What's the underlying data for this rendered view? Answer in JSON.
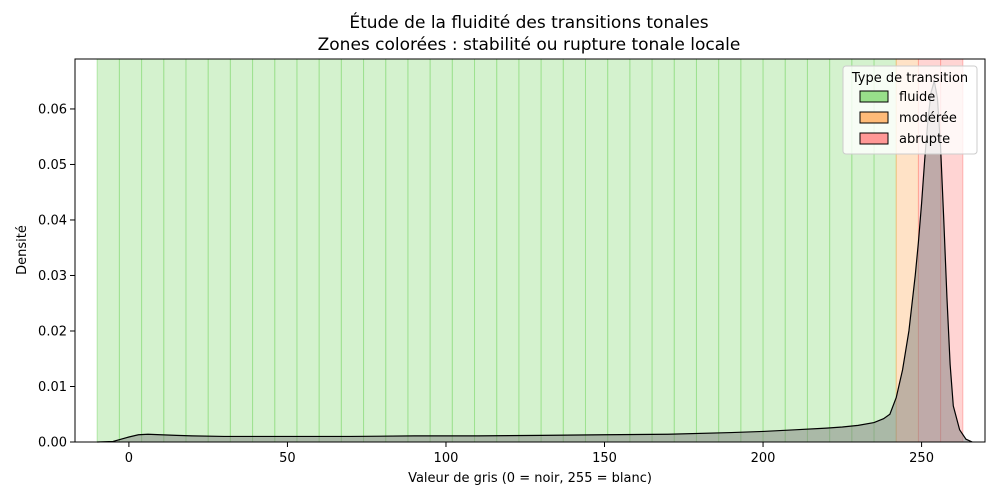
{
  "chart_data": {
    "type": "area",
    "title": "Étude de la fluidité des transitions tonales",
    "subtitle": "Zones colorées : stabilité ou rupture tonale locale",
    "xlabel": "Valeur de gris (0 = noir, 255 = blanc)",
    "ylabel": "Densité",
    "xlim": [
      -17,
      270
    ],
    "ylim": [
      0,
      0.069
    ],
    "xticks": [
      0,
      50,
      100,
      150,
      200,
      250
    ],
    "yticks": [
      0.0,
      0.01,
      0.02,
      0.03,
      0.04,
      0.05,
      0.06
    ],
    "ytick_labels": [
      "0.00",
      "0.01",
      "0.02",
      "0.03",
      "0.04",
      "0.05",
      "0.06"
    ],
    "grid": false,
    "legend": {
      "title": "Type de transition",
      "placement": "top-right",
      "entries": [
        {
          "label": "fluide",
          "color": "#98df8a"
        },
        {
          "label": "modérée",
          "color": "#ffbb78"
        },
        {
          "label": "abrupte",
          "color": "#ff9896"
        }
      ]
    },
    "bands": {
      "start": -10,
      "step": 7,
      "categories": [
        "fluide",
        "fluide",
        "fluide",
        "fluide",
        "fluide",
        "fluide",
        "fluide",
        "fluide",
        "fluide",
        "fluide",
        "fluide",
        "fluide",
        "fluide",
        "fluide",
        "fluide",
        "fluide",
        "fluide",
        "fluide",
        "fluide",
        "fluide",
        "fluide",
        "fluide",
        "fluide",
        "fluide",
        "fluide",
        "fluide",
        "fluide",
        "fluide",
        "fluide",
        "fluide",
        "fluide",
        "fluide",
        "fluide",
        "fluide",
        "fluide",
        "fluide",
        "modérée",
        "abrupte",
        "abrupte"
      ]
    },
    "density": {
      "x": [
        -10,
        -5,
        0,
        3,
        6,
        10,
        15,
        20,
        30,
        50,
        70,
        90,
        110,
        130,
        150,
        170,
        190,
        200,
        210,
        220,
        225,
        230,
        235,
        238,
        240,
        242,
        244,
        246,
        248,
        249,
        250,
        251,
        252,
        253,
        254,
        255,
        256,
        257,
        258,
        259,
        260,
        262,
        264,
        266
      ],
      "y": [
        0,
        0.0001,
        0.0009,
        0.0013,
        0.0014,
        0.0013,
        0.0012,
        0.0011,
        0.001,
        0.001,
        0.001,
        0.0011,
        0.0011,
        0.0012,
        0.0013,
        0.0014,
        0.0017,
        0.0019,
        0.0022,
        0.0025,
        0.0027,
        0.003,
        0.0035,
        0.0042,
        0.005,
        0.008,
        0.013,
        0.02,
        0.03,
        0.036,
        0.043,
        0.051,
        0.058,
        0.063,
        0.065,
        0.062,
        0.053,
        0.04,
        0.026,
        0.014,
        0.0065,
        0.0022,
        0.0005,
        0
      ]
    },
    "colors": {
      "fluide": "#98df8a",
      "modérée": "#ffbb78",
      "abrupte": "#ff9896",
      "curve_fill": "#7f7f7f",
      "curve_line": "#000000"
    }
  }
}
